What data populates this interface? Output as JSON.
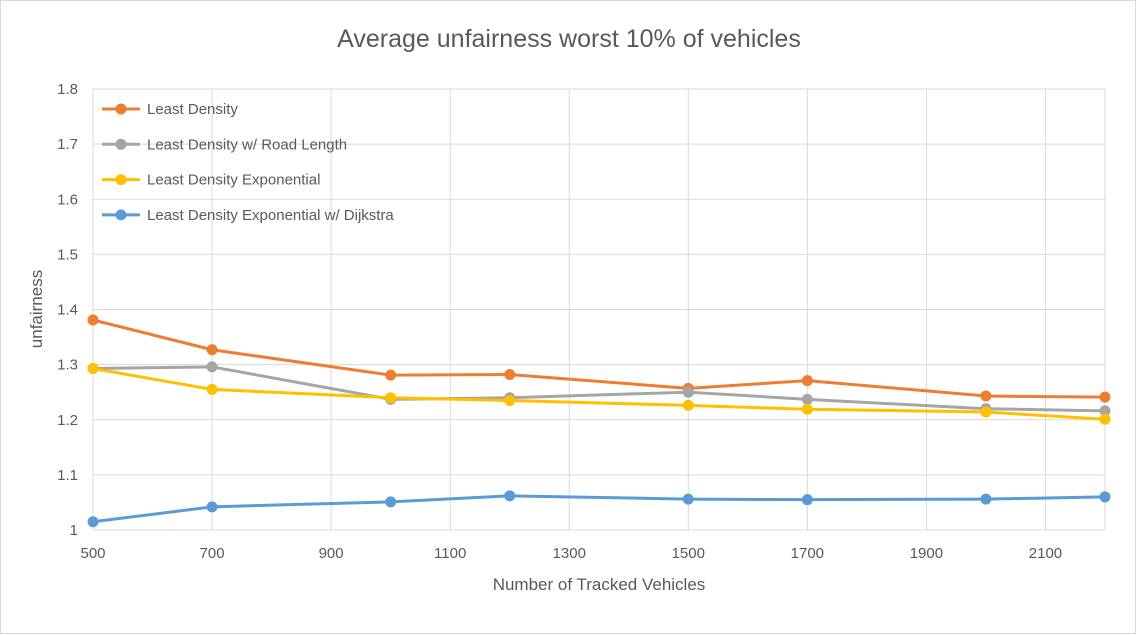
{
  "chart_data": {
    "type": "line",
    "title": "Average unfairness worst 10% of vehicles",
    "xlabel": "Number of Tracked Vehicles",
    "ylabel": "unfairness",
    "xlim": [
      500,
      2200
    ],
    "ylim": [
      1,
      1.8
    ],
    "xticks": [
      "500",
      "700",
      "900",
      "1100",
      "1300",
      "1500",
      "1700",
      "1900",
      "2100"
    ],
    "yticks": [
      "1",
      "1.1",
      "1.2",
      "1.3",
      "1.4",
      "1.5",
      "1.6",
      "1.7",
      "1.8"
    ],
    "grid": true,
    "legend_position": "top-left",
    "x": [
      500,
      700,
      1000,
      1200,
      1500,
      1700,
      2000,
      2200
    ],
    "series": [
      {
        "name": "Least Density",
        "color": "#ED7D31",
        "values": [
          1.381,
          1.327,
          1.281,
          1.282,
          1.257,
          1.271,
          1.243,
          1.241
        ]
      },
      {
        "name": "Least Density w/ Road Length",
        "color": "#A5A5A5",
        "values": [
          1.293,
          1.296,
          1.237,
          1.24,
          1.25,
          1.237,
          1.22,
          1.216
        ]
      },
      {
        "name": "Least Density Exponential",
        "color": "#FFC000",
        "values": [
          1.293,
          1.255,
          1.24,
          1.235,
          1.226,
          1.219,
          1.214,
          1.201
        ]
      },
      {
        "name": "Least Density Exponential w/ Dijkstra",
        "color": "#5B9BD5",
        "values": [
          1.015,
          1.042,
          1.051,
          1.062,
          1.056,
          1.055,
          1.056,
          1.06
        ]
      }
    ]
  }
}
